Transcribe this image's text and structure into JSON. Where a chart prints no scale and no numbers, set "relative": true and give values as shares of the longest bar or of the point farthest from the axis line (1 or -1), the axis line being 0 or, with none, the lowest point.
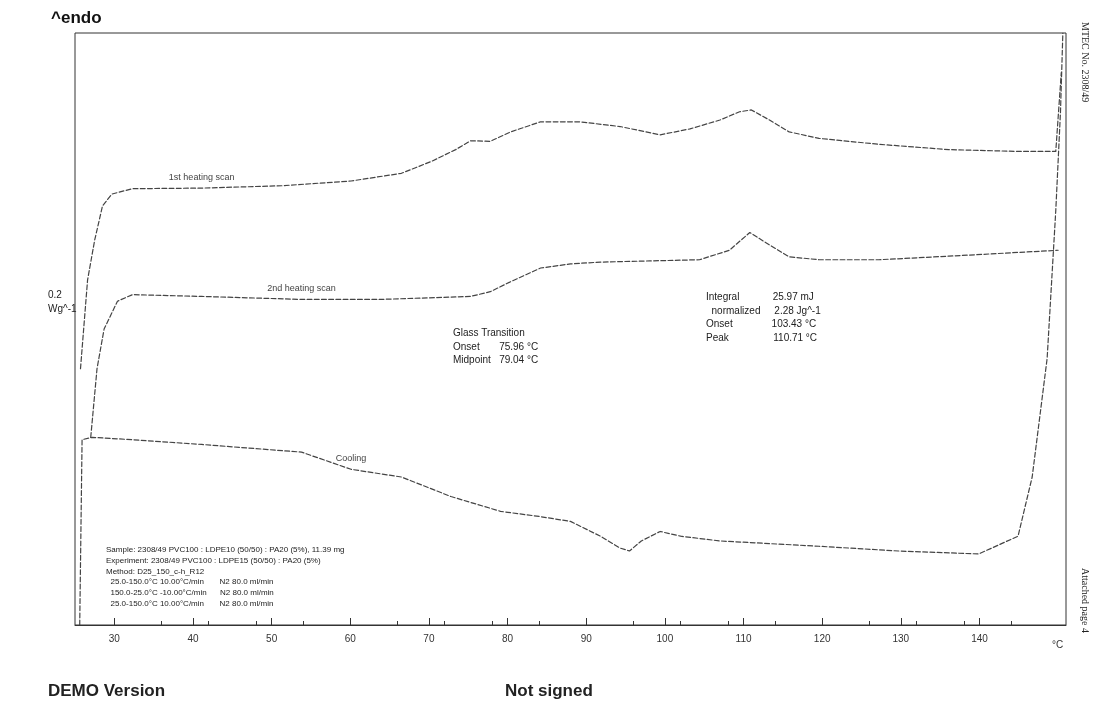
{
  "chart_data": {
    "type": "line",
    "title": "^endo",
    "xlabel": "°C",
    "relative": true,
    "grid": false,
    "legend": false,
    "marker": "none",
    "line_style": "dashed",
    "xlim": [
      25,
      151
    ],
    "xticks": [
      30,
      40,
      50,
      60,
      70,
      80,
      90,
      100,
      110,
      120,
      130,
      140
    ],
    "series": [
      {
        "name": "1st heating scan",
        "color": "#444444",
        "x": [
          25.7,
          26.6,
          27.5,
          28.5,
          29.7,
          32.3,
          41.1,
          51.3,
          60.1,
          66.5,
          70.3,
          73.4,
          75.3,
          77.8,
          80.4,
          84.2,
          89.2,
          94.3,
          99.4,
          103.2,
          107,
          109.5,
          111,
          113.3,
          115.8,
          119.6,
          127.2,
          136.1,
          144.9,
          149.7,
          150.4
        ],
        "values": [
          0.433,
          0.583,
          0.65,
          0.708,
          0.728,
          0.737,
          0.738,
          0.742,
          0.75,
          0.763,
          0.783,
          0.803,
          0.818,
          0.817,
          0.833,
          0.85,
          0.85,
          0.842,
          0.828,
          0.838,
          0.853,
          0.867,
          0.87,
          0.853,
          0.833,
          0.822,
          0.812,
          0.803,
          0.8,
          0.8,
          0.933
        ]
      },
      {
        "name": "2nd heating scan",
        "color": "#444444",
        "x": [
          27,
          27.8,
          28.7,
          30.4,
          32.3,
          41.1,
          53.8,
          63.9,
          75.3,
          77.8,
          80.4,
          84.2,
          88,
          91.8,
          98.1,
          104.4,
          108.2,
          110.8,
          113.3,
          115.8,
          119.6,
          127.2,
          136.1,
          150
        ],
        "values": [
          0.317,
          0.433,
          0.5,
          0.547,
          0.558,
          0.555,
          0.55,
          0.55,
          0.555,
          0.563,
          0.58,
          0.603,
          0.61,
          0.613,
          0.615,
          0.617,
          0.633,
          0.663,
          0.642,
          0.622,
          0.617,
          0.617,
          0.623,
          0.633
        ]
      },
      {
        "name": "Cooling",
        "color": "#444444",
        "x": [
          25.6,
          25.9,
          27.2,
          32.3,
          41.1,
          53.8,
          60.1,
          66.5,
          72.8,
          79.1,
          84.2,
          88,
          91.8,
          94.3,
          95.5,
          97,
          99.4,
          102,
          107,
          119.6,
          129.7,
          139.9,
          144.9,
          146.7,
          148.6,
          149.7,
          150.3,
          150.6
        ],
        "values": [
          0,
          0.313,
          0.317,
          0.313,
          0.305,
          0.292,
          0.263,
          0.25,
          0.217,
          0.192,
          0.183,
          0.175,
          0.15,
          0.13,
          0.125,
          0.142,
          0.158,
          0.15,
          0.142,
          0.133,
          0.125,
          0.12,
          0.15,
          0.25,
          0.45,
          0.7,
          0.867,
          1
        ]
      }
    ],
    "annotations": [
      "0.2\nWg^-1",
      "Glass Transition\nOnset       75.96 °C\nMidpoint   79.04 °C",
      "Integral            25.97 mJ\n  normalized     2.28 Jg^-1\nOnset              103.43 °C\nPeak                110.71 °C",
      "Sample: 2308/49 PVC100 : LDPE10 (50/50) : PA20 (5%), 11.39 mg\nExperiment: 2308/49 PVC100 : LDPE15 (50/50) : PA20 (5%)\nMethod: D25_150_c-h_R12\n  25.0-150.0°C 10.00°C/min       N2 80.0 ml/min\n  150.0-25.0°C -10.00°C/min      N2 80.0 ml/min\n  25.0-150.0°C 10.00°C/min       N2 80.0 ml/min",
      "DEMO Version",
      "Not signed",
      "MTEC No. 2308/49",
      "Attached page 4"
    ]
  }
}
